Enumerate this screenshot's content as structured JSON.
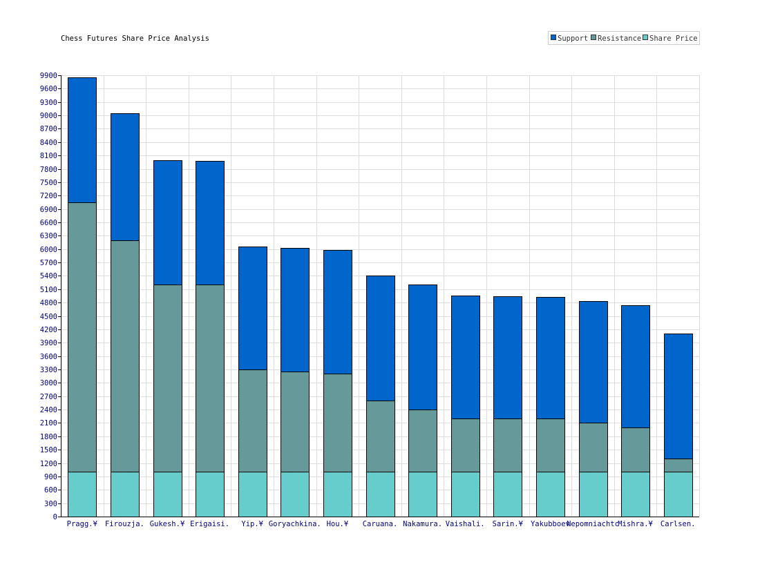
{
  "chart_data": {
    "type": "bar",
    "stacked": true,
    "title": "Chess Futures Share Price Analysis",
    "xlabel": "",
    "ylabel": "",
    "ylim": [
      0,
      9900
    ],
    "yticks": [
      0,
      300,
      600,
      900,
      1200,
      1500,
      1800,
      2100,
      2400,
      2700,
      3000,
      3300,
      3600,
      3900,
      4200,
      4500,
      4800,
      5100,
      5400,
      5700,
      6000,
      6300,
      6600,
      6900,
      7200,
      7500,
      7800,
      8100,
      8400,
      8700,
      9000,
      9300,
      9600,
      9900
    ],
    "grid": true,
    "legend_position": "top-right",
    "categories": [
      "Pragg.¥",
      "Firouzja.",
      "Gukesh.¥",
      "Erigaisi.",
      "Yip.¥",
      "Goryachkina.",
      "Hou.¥",
      "Caruana.",
      "Nakamura.",
      "Vaishali.",
      "Sarin.¥",
      "Yakubboev",
      "Nepomniachtc",
      "Mishra.¥",
      "Carlsen."
    ],
    "series": [
      {
        "name": "Share Price",
        "color": "#66cccc",
        "values": [
          1000,
          1000,
          1000,
          1000,
          1000,
          1000,
          1000,
          1000,
          1000,
          1000,
          1000,
          1000,
          1000,
          1000,
          1000
        ]
      },
      {
        "name": "Resistance",
        "color": "#669999",
        "values": [
          6050,
          5200,
          4200,
          4200,
          2300,
          2250,
          2200,
          1600,
          1400,
          1200,
          1200,
          1200,
          1100,
          1000,
          300
        ]
      },
      {
        "name": "Support",
        "color": "#0066cc",
        "values": [
          2800,
          2850,
          2800,
          2780,
          2750,
          2780,
          2780,
          2800,
          2800,
          2760,
          2740,
          2720,
          2740,
          2740,
          2800
        ]
      }
    ],
    "legend_order": [
      "Support",
      "Resistance",
      "Share Price"
    ]
  }
}
